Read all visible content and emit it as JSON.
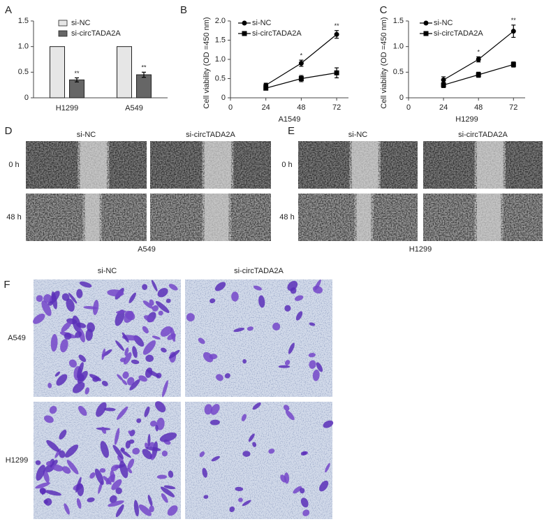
{
  "chart_data": [
    {
      "type": "bar",
      "panel": "A",
      "categories": [
        "H1299",
        "A549"
      ],
      "series": [
        {
          "name": "si-NC",
          "color": "#e6e6e6",
          "values": [
            1,
            1
          ]
        },
        {
          "name": "si-circTADA2A",
          "color": "#666666",
          "values": [
            0.35,
            0.45
          ],
          "errors": [
            0.04,
            0.05
          ],
          "annotations": [
            "**",
            "**"
          ]
        }
      ],
      "ylim": [
        0,
        1.5
      ],
      "yticks": [
        0,
        0.5,
        {
          "value": 1,
          "label": "1.0"
        },
        1.5
      ]
    },
    {
      "type": "line",
      "panel": "B",
      "y_label": "Cell viability (OD =450 nm)",
      "x_label": "A1549",
      "x": [
        24,
        48,
        72
      ],
      "xlim": [
        0,
        80
      ],
      "xticks": [
        0,
        24,
        48,
        72
      ],
      "ylim": [
        0,
        2
      ],
      "yticks": [
        0,
        0.5,
        {
          "value": 1,
          "label": "1.0"
        },
        1.5,
        {
          "value": 2,
          "label": "2.0"
        }
      ],
      "series": [
        {
          "name": "si-NC",
          "color": "#000000",
          "marker": "circle",
          "values": [
            0.33,
            0.9,
            1.65
          ],
          "errors": [
            0.05,
            0.08,
            0.1
          ],
          "annotations": [
            null,
            "*",
            "**"
          ]
        },
        {
          "name": "si-circTADA2A",
          "color": "#000000",
          "marker": "square",
          "values": [
            0.25,
            0.5,
            0.65
          ],
          "errors": [
            0.04,
            0.08,
            0.13
          ]
        }
      ]
    },
    {
      "type": "line",
      "panel": "C",
      "y_label": "Cell viability (OD =450 nm)",
      "x_label": "H1299",
      "x": [
        24,
        48,
        72
      ],
      "xlim": [
        0,
        80
      ],
      "xticks": [
        0,
        24,
        48,
        72
      ],
      "ylim": [
        0,
        1.5
      ],
      "yticks": [
        0,
        0.5,
        {
          "value": 1,
          "label": "1.0"
        },
        1.5
      ],
      "series": [
        {
          "name": "si-NC",
          "color": "#000000",
          "marker": "circle",
          "values": [
            0.35,
            0.75,
            1.3
          ],
          "errors": [
            0.06,
            0.05,
            0.12
          ],
          "annotations": [
            null,
            "*",
            "**"
          ]
        },
        {
          "name": "si-circTADA2A",
          "color": "#000000",
          "marker": "square",
          "values": [
            0.25,
            0.45,
            0.65
          ],
          "errors": [
            0.05,
            0.05,
            0.05
          ]
        }
      ]
    }
  ],
  "figure_panels": [
    {
      "label": "D",
      "columns": [
        "si-NC",
        "si-circTADA2A"
      ],
      "rows": [
        "0 h",
        "48 h"
      ],
      "caption": "A549"
    },
    {
      "label": "E",
      "columns": [
        "si-NC",
        "si-circTADA2A"
      ],
      "rows": [
        "0 h",
        "48 h"
      ],
      "caption": "H1299"
    },
    {
      "label": "F",
      "columns": [
        "si-NC",
        "si-circTADA2A"
      ],
      "rows": [
        "A549",
        "H1299"
      ]
    }
  ]
}
